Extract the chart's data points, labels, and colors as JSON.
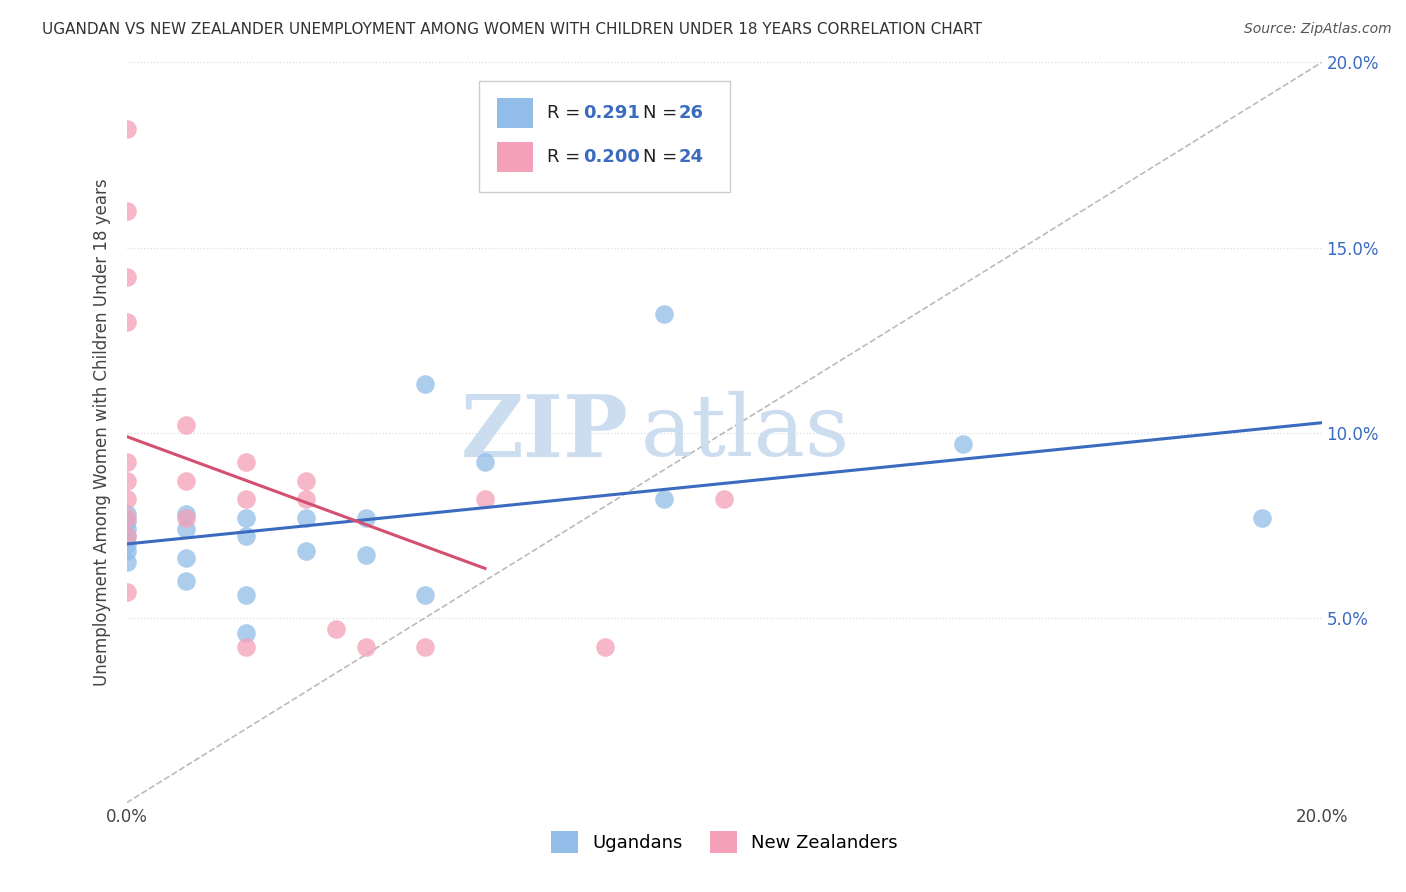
{
  "title": "UGANDAN VS NEW ZEALANDER UNEMPLOYMENT AMONG WOMEN WITH CHILDREN UNDER 18 YEARS CORRELATION CHART",
  "source": "Source: ZipAtlas.com",
  "ylabel": "Unemployment Among Women with Children Under 18 years",
  "xlim": [
    0.0,
    0.2
  ],
  "ylim": [
    0.0,
    0.2
  ],
  "ugandan_color": "#92bde8",
  "nz_color": "#f4a0b8",
  "ugandan_line_color": "#3a6bbf",
  "nz_line_color": "#d45070",
  "R_ugandan": 0.291,
  "N_ugandan": 26,
  "R_nz": 0.2,
  "N_nz": 24,
  "ugandan_x": [
    0.0,
    0.0,
    0.0,
    0.0,
    0.0,
    0.0,
    0.0,
    0.01,
    0.01,
    0.01,
    0.01,
    0.02,
    0.02,
    0.02,
    0.02,
    0.03,
    0.03,
    0.04,
    0.04,
    0.05,
    0.05,
    0.06,
    0.09,
    0.09,
    0.14,
    0.19
  ],
  "ugandan_y": [
    0.078,
    0.076,
    0.074,
    0.072,
    0.07,
    0.068,
    0.065,
    0.078,
    0.074,
    0.066,
    0.06,
    0.077,
    0.072,
    0.056,
    0.046,
    0.077,
    0.068,
    0.067,
    0.077,
    0.113,
    0.056,
    0.092,
    0.082,
    0.132,
    0.097,
    0.077
  ],
  "nz_x": [
    0.0,
    0.0,
    0.0,
    0.0,
    0.0,
    0.0,
    0.0,
    0.0,
    0.0,
    0.0,
    0.01,
    0.01,
    0.01,
    0.02,
    0.02,
    0.02,
    0.03,
    0.03,
    0.035,
    0.04,
    0.05,
    0.06,
    0.08,
    0.1
  ],
  "nz_y": [
    0.182,
    0.16,
    0.142,
    0.13,
    0.092,
    0.087,
    0.082,
    0.077,
    0.072,
    0.057,
    0.102,
    0.087,
    0.077,
    0.092,
    0.082,
    0.042,
    0.087,
    0.082,
    0.047,
    0.042,
    0.042,
    0.082,
    0.042,
    0.082
  ],
  "background_color": "#ffffff",
  "grid_color": "#dddddd",
  "watermark_zip": "ZIP",
  "watermark_atlas": "atlas",
  "watermark_color": "#ccddf0",
  "legend_label_ugandan": "Ugandans",
  "legend_label_nz": "New Zealanders"
}
